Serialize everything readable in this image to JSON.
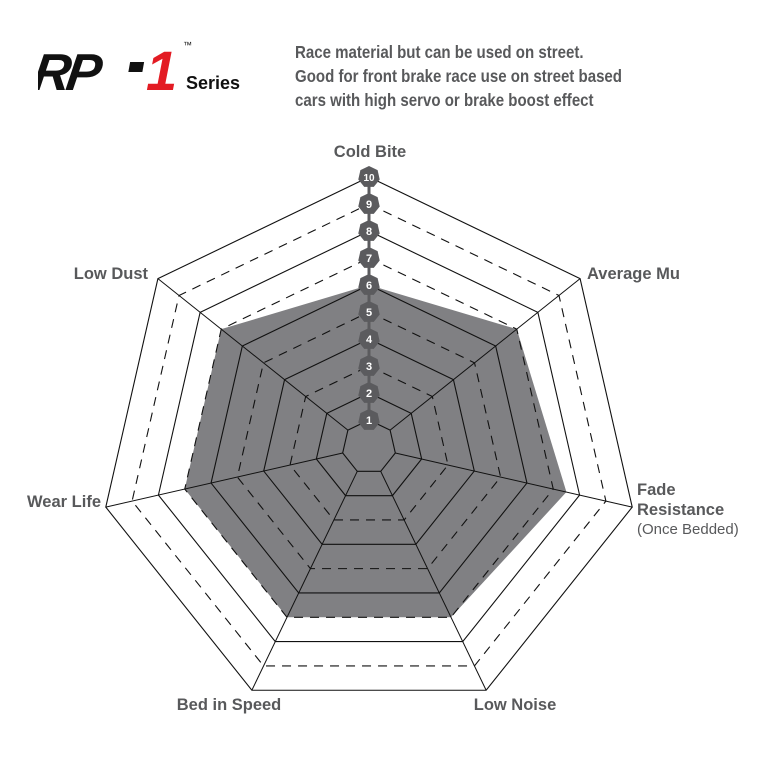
{
  "logo": {
    "text": "RP-1",
    "trademark": "™",
    "series": "Series",
    "colors": {
      "black": "#111111",
      "red": "#e31b23"
    }
  },
  "description": [
    "Race material but can be used on street.",
    "Good for front brake race use on street based",
    "cars with high servo or brake boost effect"
  ],
  "chart_data": {
    "type": "radar",
    "axes": [
      "Cold Bite",
      "Average Mu",
      "Fade Resistance",
      "Low Noise",
      "Bed in Speed",
      "Wear Life",
      "Low Dust"
    ],
    "axis_sublabels": {
      "Fade Resistance": "(Once Bedded)"
    },
    "values": [
      6,
      7,
      7.5,
      7,
      7,
      7,
      7
    ],
    "range": [
      0,
      10
    ],
    "scale_labels": [
      "1",
      "2",
      "3",
      "4",
      "5",
      "6",
      "7",
      "8",
      "9",
      "10"
    ],
    "fill_color": "#808083",
    "badge_color": "#5b5b5e"
  }
}
